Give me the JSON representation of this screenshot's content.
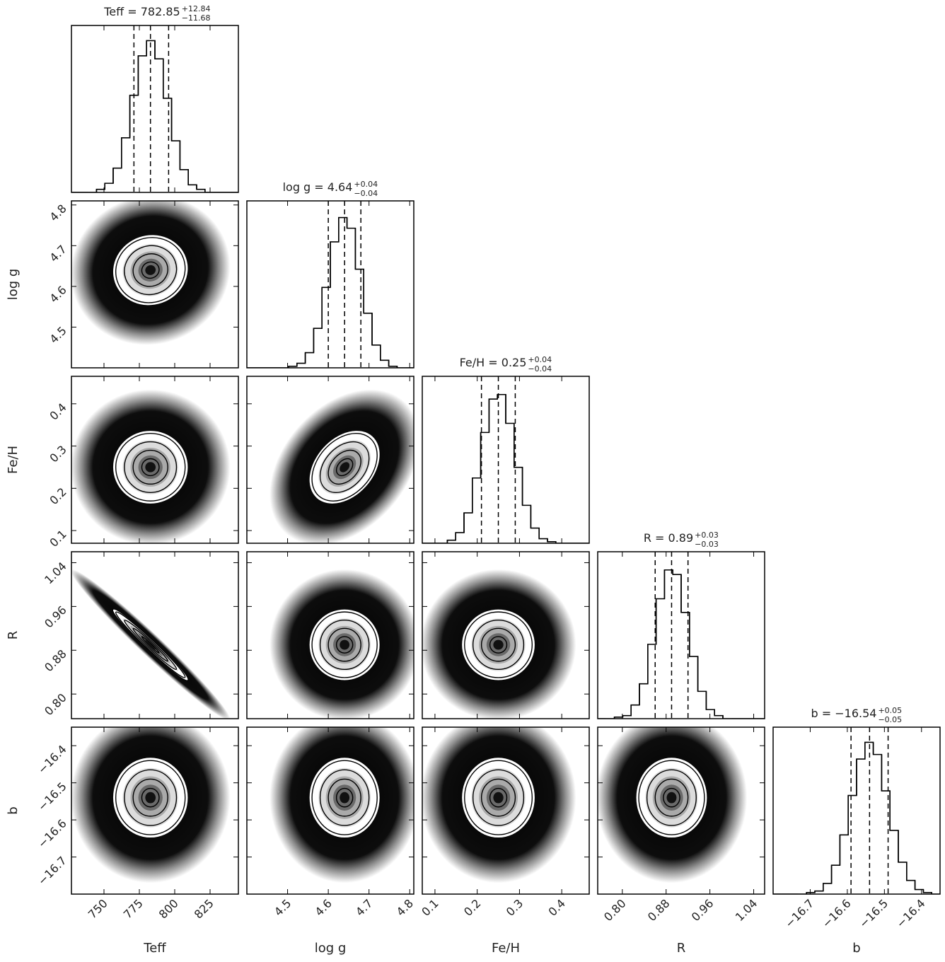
{
  "chart_data": {
    "type": "corner",
    "hist_ylim": [
      0,
      110
    ],
    "parameters": [
      {
        "label": "Teff",
        "title": "Teff = 782.85",
        "err_plus": "+12.84",
        "err_minus": "−11.68",
        "lim": [
          727,
          845
        ],
        "ticks": [
          750,
          775,
          800,
          825
        ],
        "quantiles": [
          771.17,
          782.85,
          795.69
        ],
        "bins": [
          727,
          732.9,
          738.8,
          744.7,
          750.6,
          756.5,
          762.4,
          768.3,
          774.2,
          780.1,
          786,
          791.9,
          797.8,
          803.7,
          809.6,
          815.5,
          821.4,
          827.3,
          833.2,
          839.1,
          845
        ],
        "counts": [
          0,
          0,
          0,
          2,
          6,
          16,
          36,
          64,
          90,
          100,
          88,
          62,
          34,
          15,
          5,
          2,
          0,
          0,
          0,
          0
        ]
      },
      {
        "label": "log g",
        "title": "log g = 4.64",
        "err_plus": "+0.04",
        "err_minus": "−0.04",
        "lim": [
          4.4,
          4.81
        ],
        "ticks": [
          4.5,
          4.6,
          4.7,
          4.8
        ],
        "quantiles": [
          4.6,
          4.64,
          4.68
        ],
        "bins": [
          4.4,
          4.4205,
          4.441,
          4.4615,
          4.482,
          4.5025,
          4.523,
          4.5435,
          4.564,
          4.5845,
          4.605,
          4.6255,
          4.646,
          4.6665,
          4.687,
          4.7075,
          4.728,
          4.7485,
          4.769,
          4.7895,
          4.81
        ],
        "counts": [
          0,
          0,
          0,
          0,
          0,
          1,
          3,
          10,
          26,
          53,
          83,
          99,
          92,
          65,
          36,
          15,
          5,
          1,
          0,
          0
        ]
      },
      {
        "label": "Fe/H",
        "title": "Fe/H = 0.25",
        "err_plus": "+0.04",
        "err_minus": "−0.04",
        "lim": [
          0.07,
          0.465
        ],
        "ticks": [
          0.1,
          0.2,
          0.3,
          0.4
        ],
        "quantiles": [
          0.21,
          0.25,
          0.29
        ],
        "bins": [
          0.07,
          0.08975,
          0.1095,
          0.12925,
          0.149,
          0.16875,
          0.1885,
          0.20825,
          0.228,
          0.24775,
          0.2675,
          0.28725,
          0.307,
          0.32675,
          0.3465,
          0.36625,
          0.386,
          0.40575,
          0.4255,
          0.44525,
          0.465
        ],
        "counts": [
          0,
          0,
          0,
          2,
          7,
          20,
          43,
          73,
          95,
          98,
          79,
          50,
          25,
          10,
          3,
          1,
          0,
          0,
          0,
          0
        ]
      },
      {
        "label": "R",
        "title": "R = 0.89",
        "err_plus": "+0.03",
        "err_minus": "−0.03",
        "lim": [
          0.755,
          1.06
        ],
        "ticks": [
          {
            "value": 0.8,
            "label": "0.80"
          },
          {
            "value": 0.88,
            "label": "0.88"
          },
          {
            "value": 0.96,
            "label": "0.96"
          },
          {
            "value": 1.04,
            "label": "1.04"
          }
        ],
        "quantiles": [
          0.86,
          0.89,
          0.92
        ],
        "bins": [
          0.755,
          0.77025,
          0.7855,
          0.80075,
          0.816,
          0.83125,
          0.8465,
          0.86175,
          0.877,
          0.89225,
          0.9075,
          0.92275,
          0.938,
          0.95325,
          0.9685,
          0.98375,
          0.999,
          1.01425,
          1.0295,
          1.04475,
          1.06
        ],
        "counts": [
          0,
          0,
          1,
          2,
          9,
          23,
          49,
          79,
          98,
          95,
          70,
          41,
          18,
          6,
          2,
          0,
          0,
          0,
          0,
          0
        ]
      },
      {
        "label": "b",
        "title": "b = −16.54",
        "err_plus": "+0.05",
        "err_minus": "−0.05",
        "lim": [
          -16.8,
          -16.35
        ],
        "ticks": [
          {
            "value": -16.7,
            "label": "−16.7"
          },
          {
            "value": -16.6,
            "label": "−16.6"
          },
          {
            "value": -16.5,
            "label": "−16.5"
          },
          {
            "value": -16.4,
            "label": "−16.4"
          }
        ],
        "quantiles": [
          -16.59,
          -16.54,
          -16.49
        ],
        "bins": [
          -16.8,
          -16.7775,
          -16.755,
          -16.7325,
          -16.71,
          -16.6875,
          -16.665,
          -16.6425,
          -16.62,
          -16.5975,
          -16.575,
          -16.5525,
          -16.53,
          -16.5075,
          -16.485,
          -16.4625,
          -16.44,
          -16.4175,
          -16.395,
          -16.3725,
          -16.35
        ],
        "counts": [
          0,
          0,
          0,
          0,
          1,
          2,
          7,
          19,
          39,
          65,
          89,
          100,
          92,
          68,
          42,
          21,
          9,
          3,
          1,
          0
        ]
      }
    ],
    "correlations": [
      [
        0.05
      ],
      [
        0,
        0.35
      ],
      [
        -0.98,
        0,
        0
      ],
      [
        0,
        0,
        0,
        0
      ]
    ]
  }
}
